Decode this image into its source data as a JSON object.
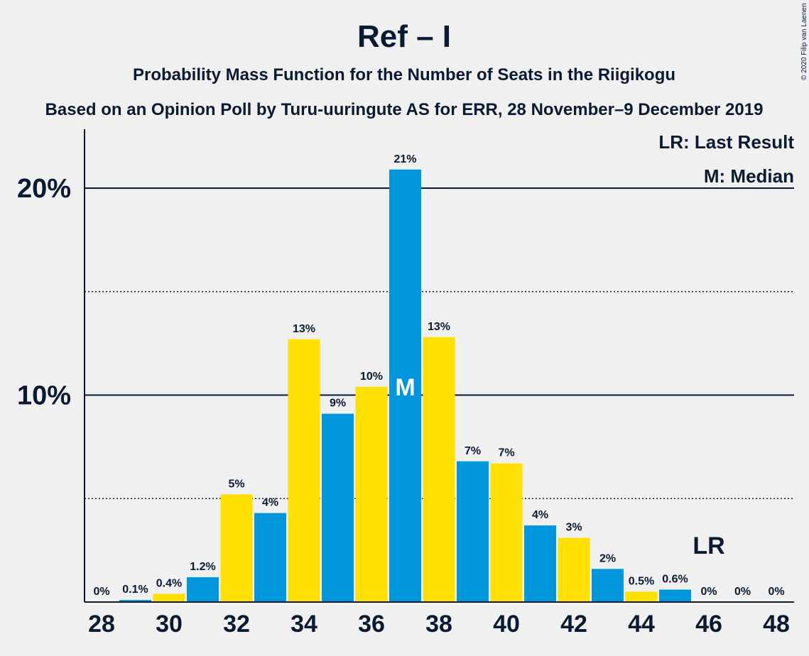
{
  "copyright": "© 2020 Filip van Laenen",
  "legend": {
    "last_result": "LR: Last Result",
    "median": "M: Median"
  },
  "markers": {
    "median_label": "M",
    "last_result_label": "LR",
    "median_seat": 37,
    "last_result_seat": 46
  },
  "colors": {
    "blue": "#0096db",
    "yellow": "#ffe000",
    "text": "#0a1a33"
  },
  "chart_data": {
    "type": "bar",
    "title": "Ref – I",
    "subtitle": "Probability Mass Function for the Number of Seats in the Riigikogu",
    "subtitle2": "Based on an Opinion Poll by Turu-uuringute AS for ERR, 28 November–9 December 2019",
    "xlabel": "",
    "ylabel": "",
    "x": [
      28,
      29,
      30,
      31,
      32,
      33,
      34,
      35,
      36,
      37,
      38,
      39,
      40,
      41,
      42,
      43,
      44,
      45,
      46,
      47,
      48
    ],
    "values": [
      0,
      0.1,
      0.4,
      1.2,
      5.2,
      4.3,
      12.7,
      9.1,
      10.4,
      20.9,
      12.8,
      6.8,
      6.7,
      3.7,
      3.1,
      1.6,
      0.5,
      0.6,
      0,
      0,
      0
    ],
    "data_labels": [
      "0%",
      "0.1%",
      "0.4%",
      "1.2%",
      "5%",
      "4%",
      "13%",
      "9%",
      "10%",
      "21%",
      "13%",
      "7%",
      "7%",
      "4%",
      "3%",
      "2%",
      "0.5%",
      "0.6%",
      "0%",
      "0%",
      "0%"
    ],
    "x_tick_labels": [
      "28",
      "30",
      "32",
      "34",
      "36",
      "38",
      "40",
      "42",
      "44",
      "46",
      "48"
    ],
    "y_tick_labels": [
      "10%",
      "20%"
    ],
    "y_ticks": [
      10,
      20
    ],
    "y_minor_ticks": [
      5,
      15
    ],
    "ylim": [
      0,
      22.8
    ],
    "grid": true
  }
}
